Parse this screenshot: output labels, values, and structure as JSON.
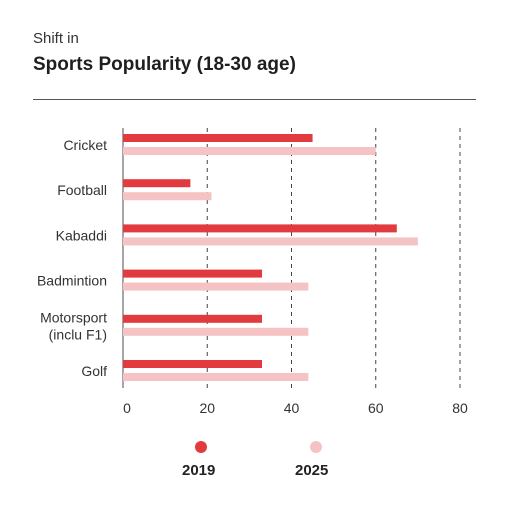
{
  "header": {
    "subtitle": "Shift in",
    "title": "Sports Popularity (18-30 age)"
  },
  "colors": {
    "series_2019": "#e23b3f",
    "series_2025": "#f5c3c3",
    "axis": "#888888",
    "grid": "#444444",
    "text": "#333333"
  },
  "chart_data": {
    "type": "bar",
    "orientation": "horizontal",
    "title": "Sports Popularity (18-30 age)",
    "subtitle": "Shift in",
    "categories": [
      [
        "Cricket"
      ],
      [
        "Football"
      ],
      [
        "Kabaddi"
      ],
      [
        "Badmintion"
      ],
      [
        "Motorsport",
        "(inclu F1)"
      ],
      [
        "Golf"
      ]
    ],
    "series": [
      {
        "name": "2019",
        "values": [
          45,
          16,
          65,
          33,
          33,
          33
        ]
      },
      {
        "name": "2025",
        "values": [
          60,
          21,
          70,
          44,
          44,
          44
        ]
      }
    ],
    "xlim": [
      0,
      80
    ],
    "xticks": [
      0,
      20,
      40,
      60,
      80
    ],
    "grid": "vertical-dashed",
    "legend": "bottom"
  }
}
